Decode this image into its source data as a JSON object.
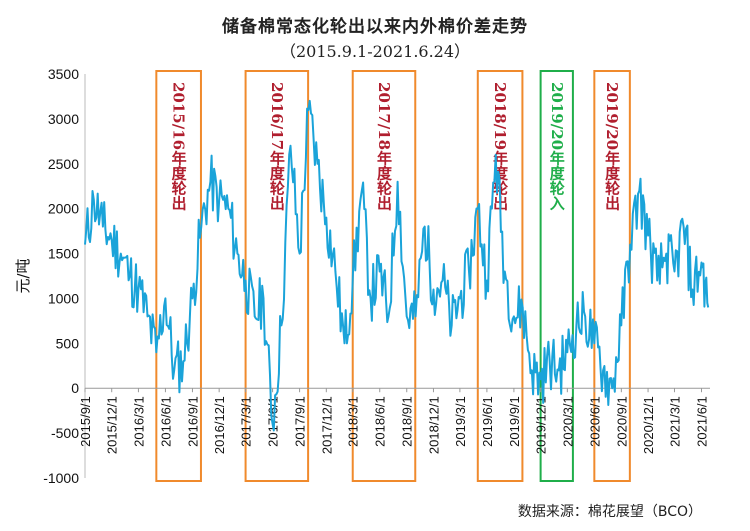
{
  "title": "储备棉常态化轮出以来内外棉价差走势",
  "subtitle": "（2015.9.1-2021.6.24）",
  "source": "数据来源：棉花展望（BCO）",
  "colors": {
    "line": "#1aa3d9",
    "orange": "#f08a2c",
    "green": "#1fae4a",
    "label_red": "#b01e2e",
    "label_green": "#1fae4a"
  },
  "chart_data": {
    "type": "line",
    "title": "储备棉常态化轮出以来内外棉价差走势",
    "ylabel": "元/吨",
    "ylim": [
      -1000,
      3500
    ],
    "yticks": [
      -1000,
      -500,
      0,
      500,
      1000,
      1500,
      2000,
      2500,
      3000,
      3500
    ],
    "xticks": [
      "2015/9/1",
      "2015/12/1",
      "2016/3/1",
      "2016/6/1",
      "2016/9/1",
      "2016/12/1",
      "2017/3/1",
      "2017/6/1",
      "2017/9/1",
      "2017/12/1",
      "2018/3/1",
      "2018/6/1",
      "2018/9/1",
      "2018/12/1",
      "2019/3/1",
      "2019/6/1",
      "2019/9/1",
      "2019/12/1",
      "2020/3/1",
      "2020/6/1",
      "2020/9/1",
      "2020/12/1",
      "2021/3/1",
      "2021/6/1"
    ],
    "grid": false,
    "series": [
      {
        "x": [
          "2015/9/1",
          "2015/10/1",
          "2015/11/1",
          "2015/12/1",
          "2016/1/1",
          "2016/2/1",
          "2016/3/1",
          "2016/4/1",
          "2016/5/1",
          "2016/6/1",
          "2016/7/1",
          "2016/8/1",
          "2016/9/1",
          "2016/10/1",
          "2016/11/1",
          "2016/12/1",
          "2017/1/1",
          "2017/2/1",
          "2017/3/1",
          "2017/4/1",
          "2017/5/1",
          "2017/6/1",
          "2017/7/1",
          "2017/8/1",
          "2017/9/1",
          "2017/10/1",
          "2017/11/1",
          "2017/12/1",
          "2018/1/1",
          "2018/2/1",
          "2018/3/1",
          "2018/4/1",
          "2018/5/1",
          "2018/6/1",
          "2018/7/1",
          "2018/8/1",
          "2018/9/1",
          "2018/10/1",
          "2018/11/1",
          "2018/12/1",
          "2019/1/1",
          "2019/2/1",
          "2019/3/1",
          "2019/4/1",
          "2019/5/1",
          "2019/6/1",
          "2019/7/1",
          "2019/8/1",
          "2019/9/1",
          "2019/10/1",
          "2019/11/1",
          "2019/12/1",
          "2020/1/1",
          "2020/2/1",
          "2020/3/1",
          "2020/4/1",
          "2020/5/1",
          "2020/6/1",
          "2020/7/1",
          "2020/8/1",
          "2020/9/1",
          "2020/10/1",
          "2020/11/1",
          "2020/12/1",
          "2021/1/1",
          "2021/2/1",
          "2021/3/1",
          "2021/4/1",
          "2021/5/1",
          "2021/6/1",
          "2021/6/24"
        ],
        "y": [
          1600,
          2100,
          1800,
          1650,
          1500,
          1250,
          1100,
          800,
          400,
          1000,
          200,
          300,
          1000,
          1800,
          2300,
          2100,
          2000,
          1500,
          1200,
          800,
          1000,
          -400,
          700,
          2700,
          1500,
          3100,
          2500,
          1900,
          1300,
          500,
          1200,
          2200,
          1000,
          1300,
          800,
          2300,
          800,
          800,
          1800,
          1100,
          1200,
          700,
          1000,
          1300,
          2000,
          1200,
          2600,
          1300,
          800,
          900,
          200,
          100,
          300,
          200,
          400,
          700,
          800,
          500,
          200,
          0,
          700,
          1600,
          2200,
          1700,
          1200,
          1500,
          1300,
          1800,
          1100,
          1400,
          900
        ]
      }
    ],
    "periods": [
      {
        "label": "2015/16年度轮出",
        "start": "2016/5/1",
        "end": "2016/9/30",
        "type": "out"
      },
      {
        "label": "2016/17年度轮出",
        "start": "2017/3/1",
        "end": "2017/9/30",
        "type": "out"
      },
      {
        "label": "2017/18年度轮出",
        "start": "2018/3/1",
        "end": "2018/9/30",
        "type": "out"
      },
      {
        "label": "2018/19年度轮出",
        "start": "2019/5/1",
        "end": "2019/9/30",
        "type": "out"
      },
      {
        "label": "2019/20年度轮入",
        "start": "2019/12/1",
        "end": "2020/3/20",
        "type": "in"
      },
      {
        "label": "2019/20年度轮出",
        "start": "2020/6/1",
        "end": "2020/9/30",
        "type": "out"
      }
    ]
  }
}
